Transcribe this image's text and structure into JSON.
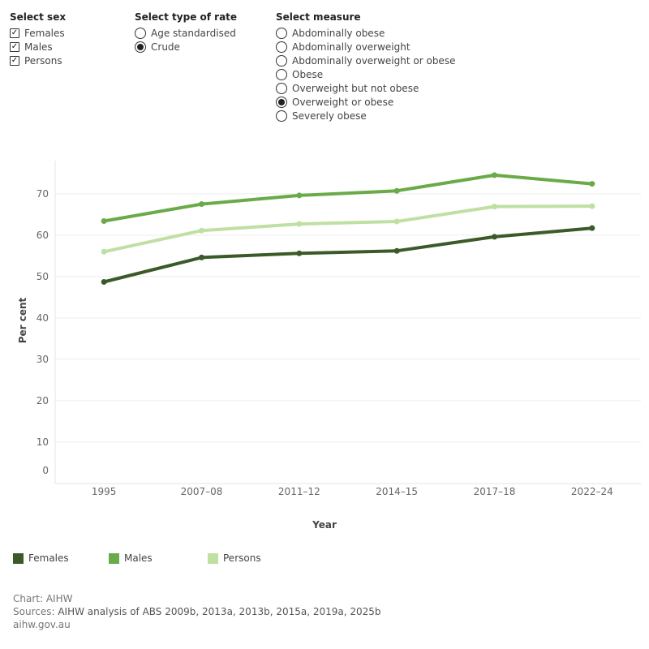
{
  "filters": {
    "sex": {
      "title": "Select sex",
      "options": [
        {
          "label": "Females",
          "checked": true
        },
        {
          "label": "Males",
          "checked": true
        },
        {
          "label": "Persons",
          "checked": true
        }
      ]
    },
    "rate": {
      "title": "Select type of rate",
      "options": [
        {
          "label": "Age standardised",
          "selected": false
        },
        {
          "label": "Crude",
          "selected": true
        }
      ]
    },
    "measure": {
      "title": "Select measure",
      "options": [
        {
          "label": "Abdominally obese",
          "selected": false
        },
        {
          "label": "Abdominally overweight",
          "selected": false
        },
        {
          "label": "Abdominally overweight or obese",
          "selected": false
        },
        {
          "label": "Obese",
          "selected": false
        },
        {
          "label": "Overweight but not obese",
          "selected": false
        },
        {
          "label": "Overweight or obese",
          "selected": true
        },
        {
          "label": "Severely obese",
          "selected": false
        }
      ]
    }
  },
  "chart_data": {
    "type": "line",
    "x": [
      "1995",
      "2007–08",
      "2011–12",
      "2014–15",
      "2017–18",
      "2022–24"
    ],
    "xlabel": "Year",
    "ylabel": "Per cent",
    "ylim": [
      0,
      78
    ],
    "yticks": [
      0,
      10,
      20,
      30,
      40,
      50,
      60,
      70
    ],
    "grid": true,
    "legend_position": "bottom",
    "series": [
      {
        "name": "Females",
        "color": "#3a5a28",
        "values": [
          48.7,
          54.6,
          55.6,
          56.2,
          59.6,
          61.7
        ]
      },
      {
        "name": "Males",
        "color": "#6aaa48",
        "values": [
          63.4,
          67.5,
          69.6,
          70.7,
          74.5,
          72.4
        ]
      },
      {
        "name": "Persons",
        "color": "#bfe0a3",
        "values": [
          56.0,
          61.1,
          62.7,
          63.3,
          66.9,
          67.0
        ]
      }
    ]
  },
  "footer": {
    "chart_credit": "Chart: AIHW",
    "sources_label": "Sources:",
    "sources_text": "AIHW analysis of ABS 2009b, 2013a, 2013b, 2015a, 2019a, 2025b",
    "website": "aihw.gov.au"
  }
}
